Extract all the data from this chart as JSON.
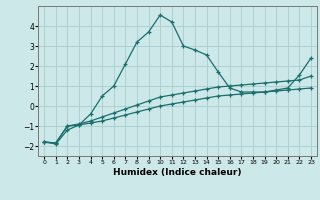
{
  "xlabel": "Humidex (Indice chaleur)",
  "ylabel": "",
  "bg_color": "#cce8e8",
  "grid_color": "#aacccc",
  "line_color": "#1a6e6e",
  "xlim": [
    -0.5,
    23.5
  ],
  "ylim": [
    -2.5,
    5.0
  ],
  "yticks": [
    -2,
    -1,
    0,
    1,
    2,
    3,
    4
  ],
  "xticks": [
    0,
    1,
    2,
    3,
    4,
    5,
    6,
    7,
    8,
    9,
    10,
    11,
    12,
    13,
    14,
    15,
    16,
    17,
    18,
    19,
    20,
    21,
    22,
    23
  ],
  "series1_x": [
    0,
    1,
    2,
    3,
    4,
    5,
    6,
    7,
    8,
    9,
    10,
    11,
    12,
    13,
    14,
    15,
    16,
    17,
    18,
    19,
    20,
    21,
    22,
    23
  ],
  "series1_y": [
    -1.8,
    -1.85,
    -1.0,
    -0.95,
    -0.85,
    -0.75,
    -0.6,
    -0.45,
    -0.3,
    -0.15,
    0.0,
    0.1,
    0.2,
    0.3,
    0.4,
    0.5,
    0.55,
    0.6,
    0.65,
    0.7,
    0.75,
    0.8,
    0.85,
    0.9
  ],
  "series2_x": [
    0,
    1,
    2,
    3,
    4,
    5,
    6,
    7,
    8,
    9,
    10,
    11,
    12,
    13,
    14,
    15,
    16,
    17,
    18,
    19,
    20,
    21,
    22,
    23
  ],
  "series2_y": [
    -1.8,
    -1.85,
    -1.0,
    -0.9,
    -0.75,
    -0.55,
    -0.35,
    -0.15,
    0.05,
    0.25,
    0.45,
    0.55,
    0.65,
    0.75,
    0.85,
    0.95,
    1.0,
    1.05,
    1.1,
    1.15,
    1.2,
    1.25,
    1.3,
    1.5
  ],
  "series3_x": [
    0,
    1,
    2,
    3,
    4,
    5,
    6,
    7,
    8,
    9,
    10,
    11,
    12,
    13,
    14,
    15,
    16,
    17,
    18,
    19,
    20,
    21,
    22,
    23
  ],
  "series3_y": [
    -1.8,
    -1.9,
    -1.2,
    -0.95,
    -0.4,
    0.5,
    1.0,
    2.1,
    3.2,
    3.7,
    4.55,
    4.2,
    3.0,
    2.8,
    2.55,
    1.7,
    0.9,
    0.7,
    0.7,
    0.7,
    0.8,
    0.9,
    1.55,
    2.4
  ]
}
